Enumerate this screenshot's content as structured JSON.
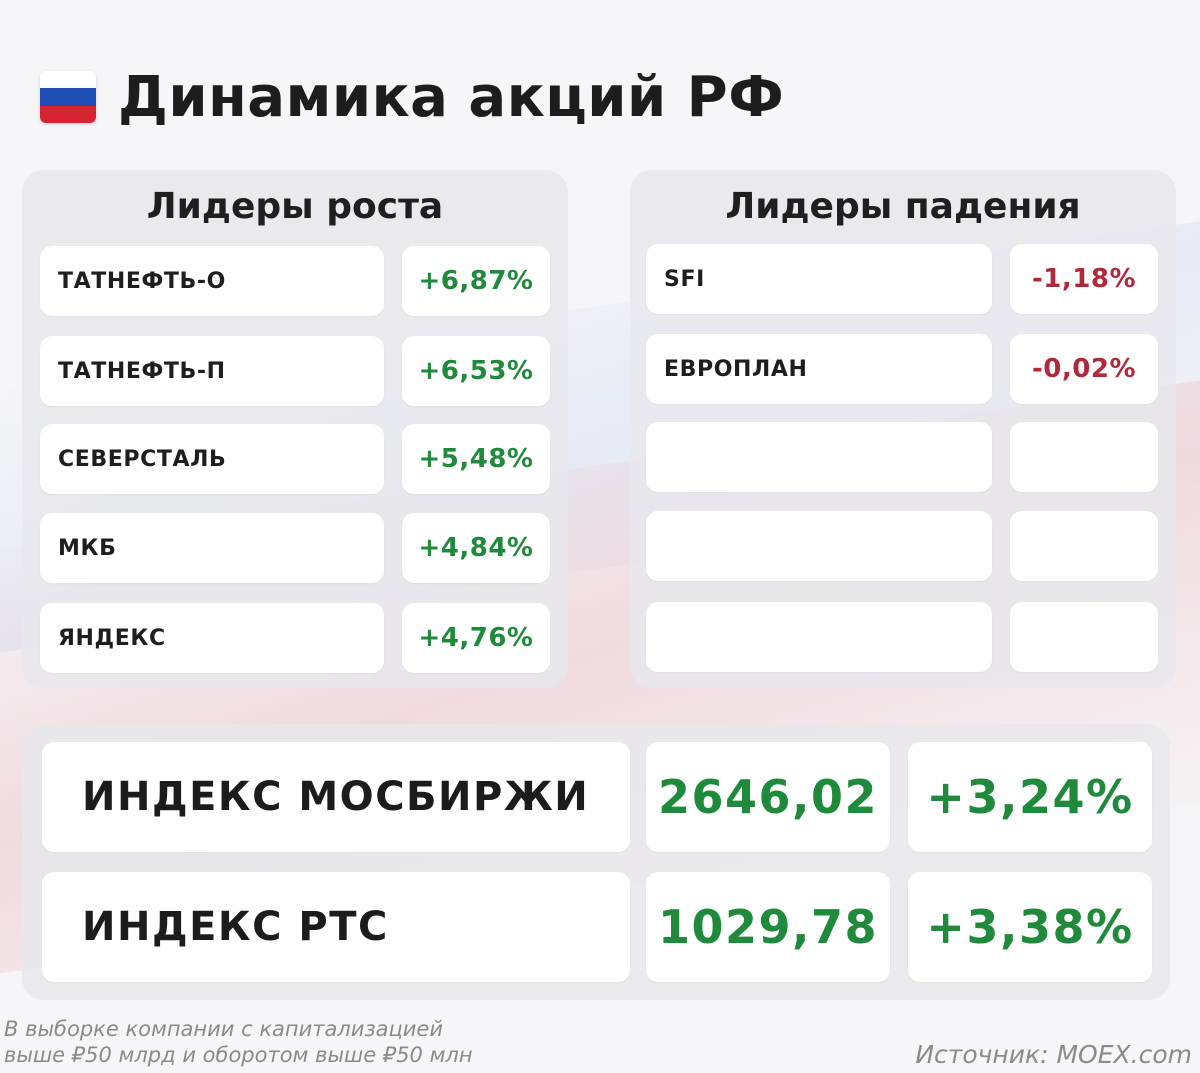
{
  "header": {
    "title": "Динамика акций РФ",
    "flag_icon": "russia-flag-icon"
  },
  "growth": {
    "title": "Лидеры роста",
    "rows": [
      {
        "name": "ТАТНЕФТЬ-О",
        "change": "+6,87%"
      },
      {
        "name": "ТАТНЕФТЬ-П",
        "change": "+6,53%"
      },
      {
        "name": "СЕВЕРСТАЛЬ",
        "change": "+5,48%"
      },
      {
        "name": "МКБ",
        "change": "+4,84%"
      },
      {
        "name": "ЯНДЕКС",
        "change": "+4,76%"
      }
    ]
  },
  "decline": {
    "title": "Лидеры падения",
    "rows": [
      {
        "name": "SFI",
        "change": "-1,18%"
      },
      {
        "name": "ЕВРОПЛАН",
        "change": "-0,02%"
      }
    ]
  },
  "indices": [
    {
      "name": "ИНДЕКС МОСБИРЖИ",
      "value": "2646,02",
      "change": "+3,24%"
    },
    {
      "name": "ИНДЕКС РТС",
      "value": "1029,78",
      "change": "+3,38%"
    }
  ],
  "footer": {
    "note_line1": "В выборке компании с капитализацией",
    "note_line2": "выше ₽50 млрд и оборотом выше ₽50 млн",
    "source": "Источник: MOEX.com"
  },
  "colors": {
    "positive": "#1f8a3c",
    "negative": "#b0283a",
    "panel": "#e8e8ec",
    "cell": "#ffffff"
  }
}
